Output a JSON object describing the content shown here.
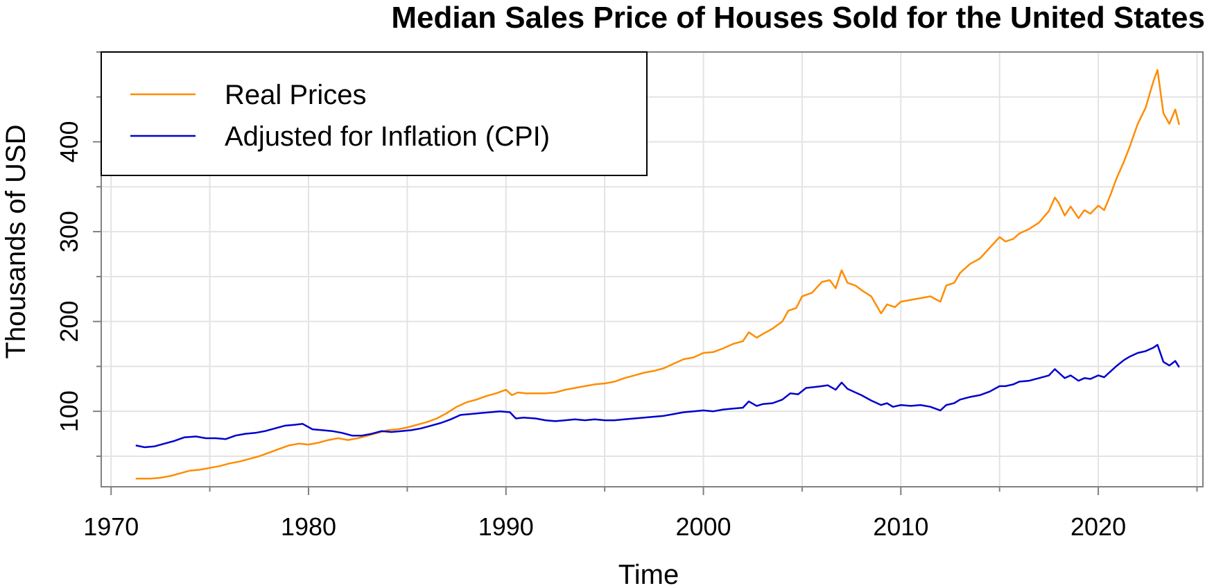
{
  "chart_data": {
    "type": "line",
    "title": "Median Sales Price of Houses Sold for the United States",
    "xlabel": "Time",
    "ylabel": "Thousands of USD",
    "xlim": [
      1969.5,
      2025.3
    ],
    "ylim": [
      16,
      500
    ],
    "xticks": [
      1970,
      1980,
      1990,
      2000,
      2010,
      2020
    ],
    "yticks": [
      100,
      200,
      300,
      400
    ],
    "grid": true,
    "legend_position": "top-left",
    "series": [
      {
        "name": "Real Prices",
        "color": "#ff8c00",
        "points": [
          [
            1971.25,
            25
          ],
          [
            1972.0,
            25
          ],
          [
            1972.5,
            26
          ],
          [
            1973.0,
            28
          ],
          [
            1973.5,
            31
          ],
          [
            1974.0,
            34
          ],
          [
            1974.5,
            35
          ],
          [
            1975.0,
            37
          ],
          [
            1975.5,
            39
          ],
          [
            1976.0,
            42
          ],
          [
            1976.5,
            44
          ],
          [
            1977.0,
            47
          ],
          [
            1977.5,
            50
          ],
          [
            1978.0,
            54
          ],
          [
            1978.5,
            58
          ],
          [
            1979.0,
            62
          ],
          [
            1979.5,
            64
          ],
          [
            1980.0,
            63
          ],
          [
            1980.5,
            65
          ],
          [
            1981.0,
            68
          ],
          [
            1981.5,
            70
          ],
          [
            1982.0,
            68
          ],
          [
            1982.5,
            70
          ],
          [
            1983.0,
            73
          ],
          [
            1983.5,
            76
          ],
          [
            1984.0,
            79
          ],
          [
            1984.5,
            80
          ],
          [
            1985.0,
            82
          ],
          [
            1985.5,
            85
          ],
          [
            1986.0,
            88
          ],
          [
            1986.5,
            92
          ],
          [
            1987.0,
            98
          ],
          [
            1987.5,
            105
          ],
          [
            1988.0,
            110
          ],
          [
            1988.5,
            113
          ],
          [
            1989.0,
            117
          ],
          [
            1989.5,
            120
          ],
          [
            1990.0,
            124
          ],
          [
            1990.3,
            118
          ],
          [
            1990.6,
            121
          ],
          [
            1991.0,
            120
          ],
          [
            1991.5,
            120
          ],
          [
            1992.0,
            120
          ],
          [
            1992.5,
            121
          ],
          [
            1993.0,
            124
          ],
          [
            1993.5,
            126
          ],
          [
            1994.0,
            128
          ],
          [
            1994.5,
            130
          ],
          [
            1995.0,
            131
          ],
          [
            1995.5,
            133
          ],
          [
            1996.0,
            137
          ],
          [
            1996.5,
            140
          ],
          [
            1997.0,
            143
          ],
          [
            1997.5,
            145
          ],
          [
            1998.0,
            148
          ],
          [
            1998.5,
            153
          ],
          [
            1999.0,
            158
          ],
          [
            1999.5,
            160
          ],
          [
            2000.0,
            165
          ],
          [
            2000.5,
            166
          ],
          [
            2001.0,
            170
          ],
          [
            2001.5,
            175
          ],
          [
            2002.0,
            178
          ],
          [
            2002.3,
            188
          ],
          [
            2002.7,
            182
          ],
          [
            2003.0,
            186
          ],
          [
            2003.5,
            192
          ],
          [
            2004.0,
            200
          ],
          [
            2004.3,
            212
          ],
          [
            2004.7,
            215
          ],
          [
            2005.0,
            228
          ],
          [
            2005.5,
            232
          ],
          [
            2006.0,
            244
          ],
          [
            2006.4,
            246
          ],
          [
            2006.7,
            237
          ],
          [
            2007.0,
            257
          ],
          [
            2007.3,
            243
          ],
          [
            2007.7,
            240
          ],
          [
            2008.0,
            235
          ],
          [
            2008.5,
            228
          ],
          [
            2009.0,
            209
          ],
          [
            2009.3,
            219
          ],
          [
            2009.7,
            216
          ],
          [
            2010.0,
            222
          ],
          [
            2010.5,
            224
          ],
          [
            2011.0,
            226
          ],
          [
            2011.5,
            228
          ],
          [
            2012.0,
            222
          ],
          [
            2012.3,
            240
          ],
          [
            2012.7,
            243
          ],
          [
            2013.0,
            254
          ],
          [
            2013.5,
            264
          ],
          [
            2014.0,
            270
          ],
          [
            2014.5,
            282
          ],
          [
            2015.0,
            294
          ],
          [
            2015.3,
            289
          ],
          [
            2015.7,
            292
          ],
          [
            2016.0,
            298
          ],
          [
            2016.5,
            303
          ],
          [
            2017.0,
            310
          ],
          [
            2017.5,
            323
          ],
          [
            2017.8,
            338
          ],
          [
            2018.0,
            332
          ],
          [
            2018.3,
            318
          ],
          [
            2018.6,
            328
          ],
          [
            2019.0,
            315
          ],
          [
            2019.3,
            324
          ],
          [
            2019.6,
            320
          ],
          [
            2020.0,
            329
          ],
          [
            2020.3,
            324
          ],
          [
            2020.6,
            340
          ],
          [
            2020.9,
            358
          ],
          [
            2021.3,
            378
          ],
          [
            2021.6,
            395
          ],
          [
            2022.0,
            420
          ],
          [
            2022.4,
            438
          ],
          [
            2022.8,
            468
          ],
          [
            2023.0,
            480
          ],
          [
            2023.3,
            432
          ],
          [
            2023.6,
            420
          ],
          [
            2023.9,
            436
          ],
          [
            2024.1,
            419
          ]
        ]
      },
      {
        "name": "Adjusted for Inflation (CPI)",
        "color": "#0000cd",
        "points": [
          [
            1971.25,
            62
          ],
          [
            1971.7,
            60
          ],
          [
            1972.2,
            61
          ],
          [
            1972.7,
            64
          ],
          [
            1973.2,
            67
          ],
          [
            1973.7,
            71
          ],
          [
            1974.3,
            72
          ],
          [
            1974.8,
            70
          ],
          [
            1975.3,
            70
          ],
          [
            1975.8,
            69
          ],
          [
            1976.3,
            73
          ],
          [
            1976.8,
            75
          ],
          [
            1977.3,
            76
          ],
          [
            1977.8,
            78
          ],
          [
            1978.3,
            81
          ],
          [
            1978.8,
            84
          ],
          [
            1979.3,
            85
          ],
          [
            1979.7,
            86
          ],
          [
            1980.2,
            80
          ],
          [
            1980.7,
            79
          ],
          [
            1981.2,
            78
          ],
          [
            1981.7,
            76
          ],
          [
            1982.2,
            73
          ],
          [
            1982.7,
            73
          ],
          [
            1983.2,
            75
          ],
          [
            1983.7,
            78
          ],
          [
            1984.2,
            77
          ],
          [
            1984.7,
            78
          ],
          [
            1985.2,
            79
          ],
          [
            1985.7,
            81
          ],
          [
            1986.2,
            84
          ],
          [
            1986.7,
            87
          ],
          [
            1987.2,
            91
          ],
          [
            1987.7,
            96
          ],
          [
            1988.2,
            97
          ],
          [
            1988.7,
            98
          ],
          [
            1989.2,
            99
          ],
          [
            1989.7,
            100
          ],
          [
            1990.2,
            99
          ],
          [
            1990.5,
            92
          ],
          [
            1990.9,
            93
          ],
          [
            1991.5,
            92
          ],
          [
            1992.0,
            90
          ],
          [
            1992.5,
            89
          ],
          [
            1993.0,
            90
          ],
          [
            1993.5,
            91
          ],
          [
            1994.0,
            90
          ],
          [
            1994.5,
            91
          ],
          [
            1995.0,
            90
          ],
          [
            1995.5,
            90
          ],
          [
            1996.0,
            91
          ],
          [
            1996.5,
            92
          ],
          [
            1997.0,
            93
          ],
          [
            1997.5,
            94
          ],
          [
            1998.0,
            95
          ],
          [
            1998.5,
            97
          ],
          [
            1999.0,
            99
          ],
          [
            1999.5,
            100
          ],
          [
            2000.0,
            101
          ],
          [
            2000.5,
            100
          ],
          [
            2001.0,
            102
          ],
          [
            2001.5,
            103
          ],
          [
            2002.0,
            104
          ],
          [
            2002.3,
            111
          ],
          [
            2002.7,
            106
          ],
          [
            2003.0,
            108
          ],
          [
            2003.5,
            109
          ],
          [
            2004.0,
            113
          ],
          [
            2004.4,
            120
          ],
          [
            2004.8,
            119
          ],
          [
            2005.2,
            126
          ],
          [
            2005.6,
            127
          ],
          [
            2006.0,
            128
          ],
          [
            2006.3,
            129
          ],
          [
            2006.7,
            124
          ],
          [
            2007.0,
            132
          ],
          [
            2007.3,
            125
          ],
          [
            2007.7,
            121
          ],
          [
            2008.0,
            118
          ],
          [
            2008.5,
            112
          ],
          [
            2009.0,
            107
          ],
          [
            2009.3,
            109
          ],
          [
            2009.6,
            105
          ],
          [
            2010.0,
            107
          ],
          [
            2010.5,
            106
          ],
          [
            2011.0,
            107
          ],
          [
            2011.5,
            105
          ],
          [
            2012.0,
            101
          ],
          [
            2012.3,
            107
          ],
          [
            2012.7,
            109
          ],
          [
            2013.0,
            113
          ],
          [
            2013.5,
            116
          ],
          [
            2014.0,
            118
          ],
          [
            2014.5,
            122
          ],
          [
            2015.0,
            128
          ],
          [
            2015.3,
            128
          ],
          [
            2015.7,
            130
          ],
          [
            2016.0,
            133
          ],
          [
            2016.5,
            134
          ],
          [
            2017.0,
            137
          ],
          [
            2017.5,
            140
          ],
          [
            2017.8,
            147
          ],
          [
            2018.0,
            143
          ],
          [
            2018.3,
            137
          ],
          [
            2018.6,
            140
          ],
          [
            2019.0,
            134
          ],
          [
            2019.3,
            137
          ],
          [
            2019.6,
            136
          ],
          [
            2020.0,
            140
          ],
          [
            2020.3,
            138
          ],
          [
            2020.6,
            144
          ],
          [
            2020.9,
            150
          ],
          [
            2021.3,
            157
          ],
          [
            2021.6,
            161
          ],
          [
            2022.0,
            165
          ],
          [
            2022.4,
            167
          ],
          [
            2022.8,
            171
          ],
          [
            2023.0,
            174
          ],
          [
            2023.3,
            155
          ],
          [
            2023.6,
            151
          ],
          [
            2023.9,
            156
          ],
          [
            2024.1,
            149
          ]
        ]
      }
    ]
  }
}
